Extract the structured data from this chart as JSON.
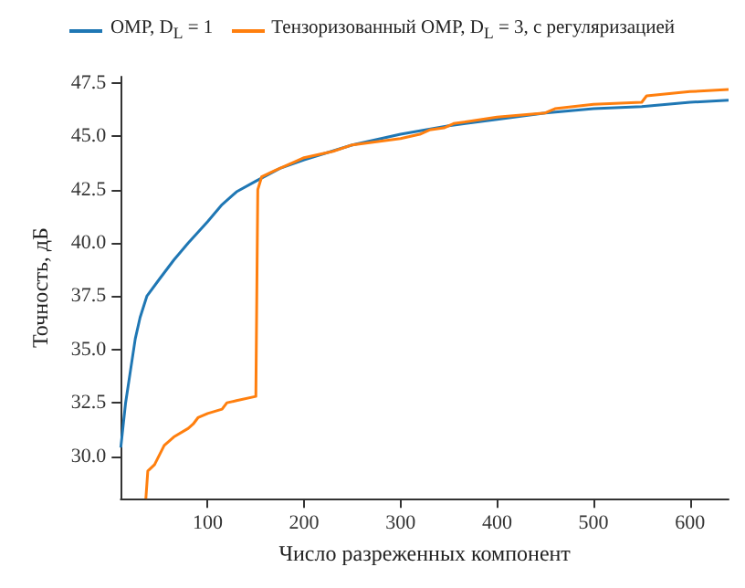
{
  "chart_data": {
    "type": "line",
    "xlabel": "Число разреженных компонент",
    "ylabel": "Точность, дБ",
    "xlim": [
      10,
      640
    ],
    "ylim": [
      28,
      47.8
    ],
    "xticks": [
      100,
      200,
      300,
      400,
      500,
      600
    ],
    "yticks": [
      {
        "value": 30,
        "label": "30.0"
      },
      {
        "value": 32.5,
        "label": "32.5"
      },
      {
        "value": 35,
        "label": "35.0"
      },
      {
        "value": 37.5,
        "label": "37.5"
      },
      {
        "value": 40,
        "label": "40.0"
      },
      {
        "value": 42.5,
        "label": "42.5"
      },
      {
        "value": 45,
        "label": "45.0"
      },
      {
        "value": 47.5,
        "label": "47.5"
      }
    ],
    "grid": false,
    "legend": "top",
    "marker": "none",
    "line_style": "solid",
    "series": [
      {
        "name": "OMP, D$_{L}$ = 1",
        "color": "#1f77b4",
        "x": [
          10,
          15,
          20,
          25,
          30,
          37,
          50,
          65,
          80,
          100,
          115,
          130,
          150,
          175,
          200,
          250,
          300,
          350,
          400,
          450,
          500,
          550,
          600,
          640
        ],
        "values": [
          30.4,
          32.5,
          34,
          35.5,
          36.5,
          37.5,
          38.3,
          39.2,
          40,
          41,
          41.8,
          42.4,
          42.9,
          43.5,
          43.9,
          44.6,
          45.1,
          45.5,
          45.8,
          46.1,
          46.3,
          46.4,
          46.6,
          46.7
        ]
      },
      {
        "name": "Тензоризованный OMP, D$_{L}$ = 3, с регуляризацией",
        "color": "#ff7f0e",
        "x": [
          36,
          38,
          45,
          55,
          65,
          80,
          85,
          90,
          100,
          115,
          120,
          130,
          150,
          152,
          156,
          170,
          190,
          200,
          230,
          250,
          300,
          320,
          330,
          345,
          355,
          400,
          450,
          460,
          500,
          550,
          555,
          600,
          640
        ],
        "values": [
          28,
          29.3,
          29.6,
          30.5,
          30.9,
          31.3,
          31.5,
          31.8,
          32,
          32.2,
          32.5,
          32.6,
          32.8,
          42.5,
          43.1,
          43.4,
          43.8,
          44,
          44.3,
          44.6,
          44.9,
          45.1,
          45.3,
          45.4,
          45.6,
          45.9,
          46.1,
          46.3,
          46.5,
          46.6,
          46.9,
          47.1,
          47.2
        ]
      }
    ]
  }
}
